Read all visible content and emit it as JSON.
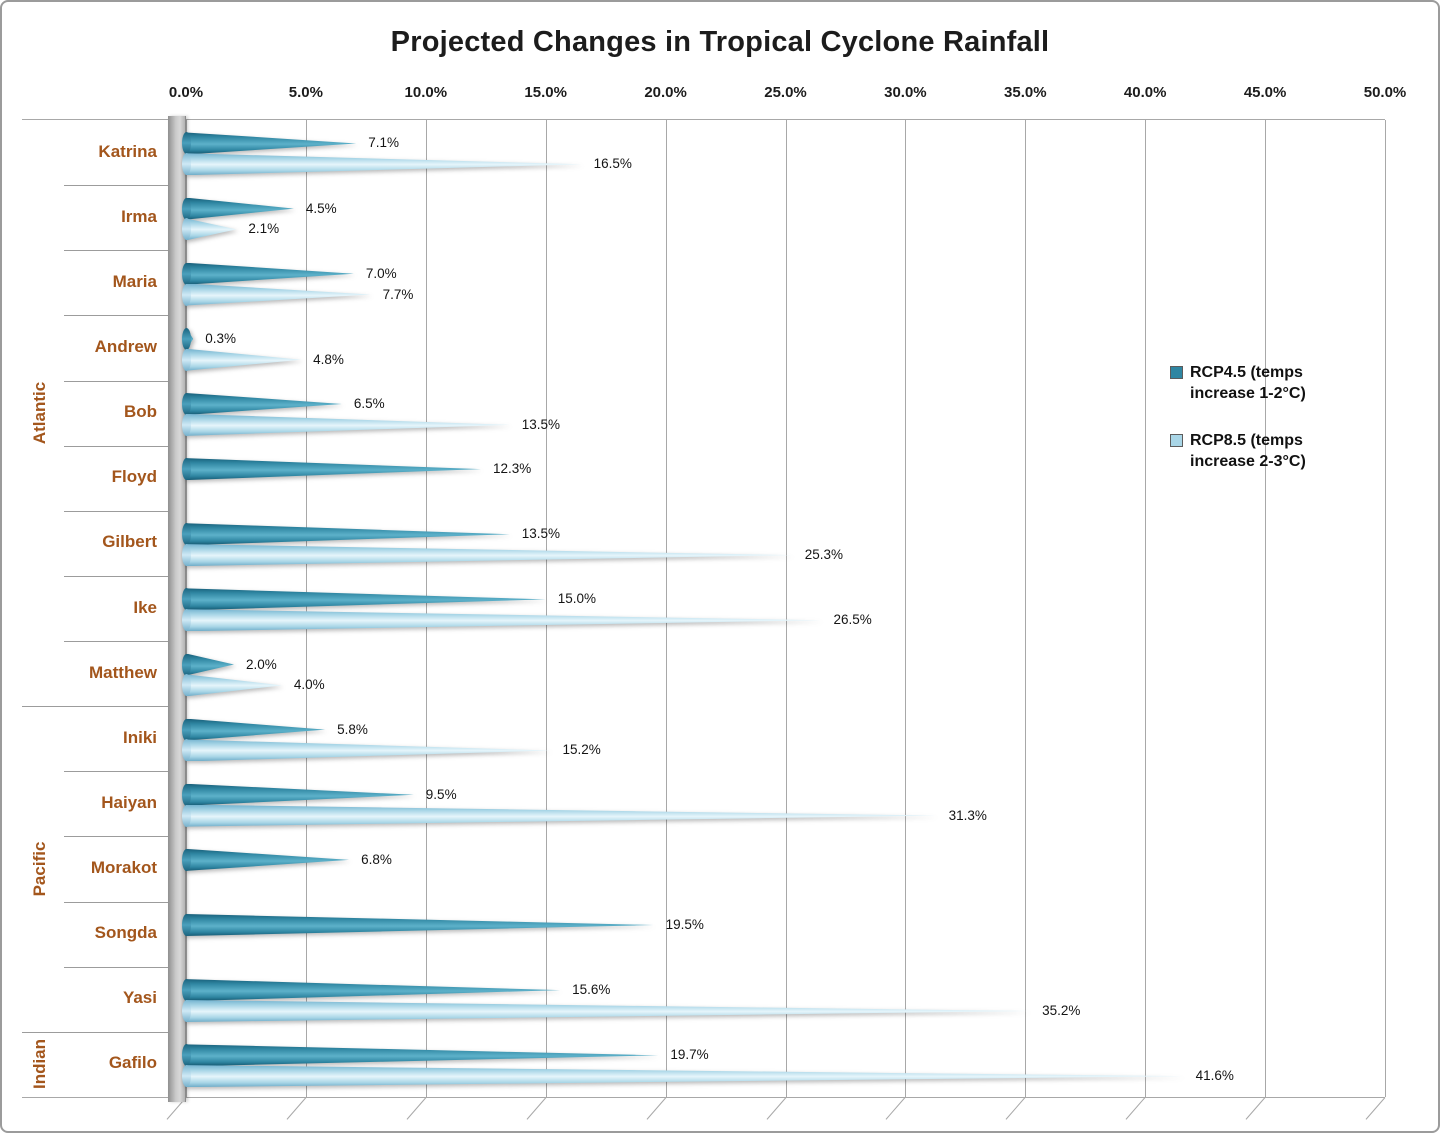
{
  "chart_data": {
    "type": "bar",
    "orientation": "horizontal",
    "title": "Projected Changes in Tropical Cyclone Rainfall",
    "x_axis": {
      "min": 0,
      "max": 50,
      "step": 5,
      "position": "top",
      "grid": true,
      "tick_labels": [
        "0.0%",
        "5.0%",
        "10.0%",
        "15.0%",
        "20.0%",
        "25.0%",
        "30.0%",
        "35.0%",
        "40.0%",
        "45.0%",
        "50.0%"
      ]
    },
    "series": [
      {
        "id": "rcp45",
        "name": "RCP4.5 (temps increase 1-2°C)",
        "color": "#2f86a2"
      },
      {
        "id": "rcp85",
        "name": "RCP8.5 (temps increase 2-3°C)",
        "color": "#a9d6e7"
      }
    ],
    "groups": [
      {
        "label": "Atlantic",
        "count": 9
      },
      {
        "label": "Pacific",
        "count": 5
      },
      {
        "label": "Indian",
        "count": 1
      }
    ],
    "rows": [
      {
        "name": "Katrina",
        "group": "Atlantic",
        "values": [
          7.1,
          16.5
        ],
        "labels": [
          "7.1%",
          "16.5%"
        ]
      },
      {
        "name": "Irma",
        "group": "Atlantic",
        "values": [
          4.5,
          2.1
        ],
        "labels": [
          "4.5%",
          "2.1%"
        ]
      },
      {
        "name": "Maria",
        "group": "Atlantic",
        "values": [
          7.0,
          7.7
        ],
        "labels": [
          "7.0%",
          "7.7%"
        ]
      },
      {
        "name": "Andrew",
        "group": "Atlantic",
        "values": [
          0.3,
          4.8
        ],
        "labels": [
          "0.3%",
          "4.8%"
        ]
      },
      {
        "name": "Bob",
        "group": "Atlantic",
        "values": [
          6.5,
          13.5
        ],
        "labels": [
          "6.5%",
          "13.5%"
        ]
      },
      {
        "name": "Floyd",
        "group": "Atlantic",
        "values": [
          12.3,
          null
        ],
        "labels": [
          "12.3%",
          null
        ]
      },
      {
        "name": "Gilbert",
        "group": "Atlantic",
        "values": [
          13.5,
          25.3
        ],
        "labels": [
          "13.5%",
          "25.3%"
        ]
      },
      {
        "name": "Ike",
        "group": "Atlantic",
        "values": [
          15.0,
          26.5
        ],
        "labels": [
          "15.0%",
          "26.5%"
        ]
      },
      {
        "name": "Matthew",
        "group": "Atlantic",
        "values": [
          2.0,
          4.0
        ],
        "labels": [
          "2.0%",
          "4.0%"
        ]
      },
      {
        "name": "Iniki",
        "group": "Pacific",
        "values": [
          5.8,
          15.2
        ],
        "labels": [
          "5.8%",
          "15.2%"
        ]
      },
      {
        "name": "Haiyan",
        "group": "Pacific",
        "values": [
          9.5,
          31.3
        ],
        "labels": [
          "9.5%",
          "31.3%"
        ]
      },
      {
        "name": "Morakot",
        "group": "Pacific",
        "values": [
          6.8,
          null
        ],
        "labels": [
          "6.8%",
          null
        ]
      },
      {
        "name": "Songda",
        "group": "Pacific",
        "values": [
          19.5,
          null
        ],
        "labels": [
          "19.5%",
          null
        ]
      },
      {
        "name": "Yasi",
        "group": "Pacific",
        "values": [
          15.6,
          35.2
        ],
        "labels": [
          "15.6%",
          "35.2%"
        ]
      },
      {
        "name": "Gafilo",
        "group": "Indian",
        "values": [
          19.7,
          41.6
        ],
        "labels": [
          "19.7%",
          "41.6%"
        ]
      }
    ],
    "legend": {
      "position": "right",
      "items": [
        {
          "label_lines": [
            "RCP4.5 (temps",
            "increase 1-2°C)"
          ],
          "color": "#2f86a2"
        },
        {
          "label_lines": [
            "RCP8.5 (temps",
            "increase 2-3°C)"
          ],
          "color": "#a9d6e7"
        }
      ]
    },
    "colors": {
      "category_text": "#a3561c",
      "grid": "#a8a8a8",
      "axis_text": "#1c1c1c",
      "title": "#1c1c1c",
      "wall": "#b0b0b0"
    }
  }
}
